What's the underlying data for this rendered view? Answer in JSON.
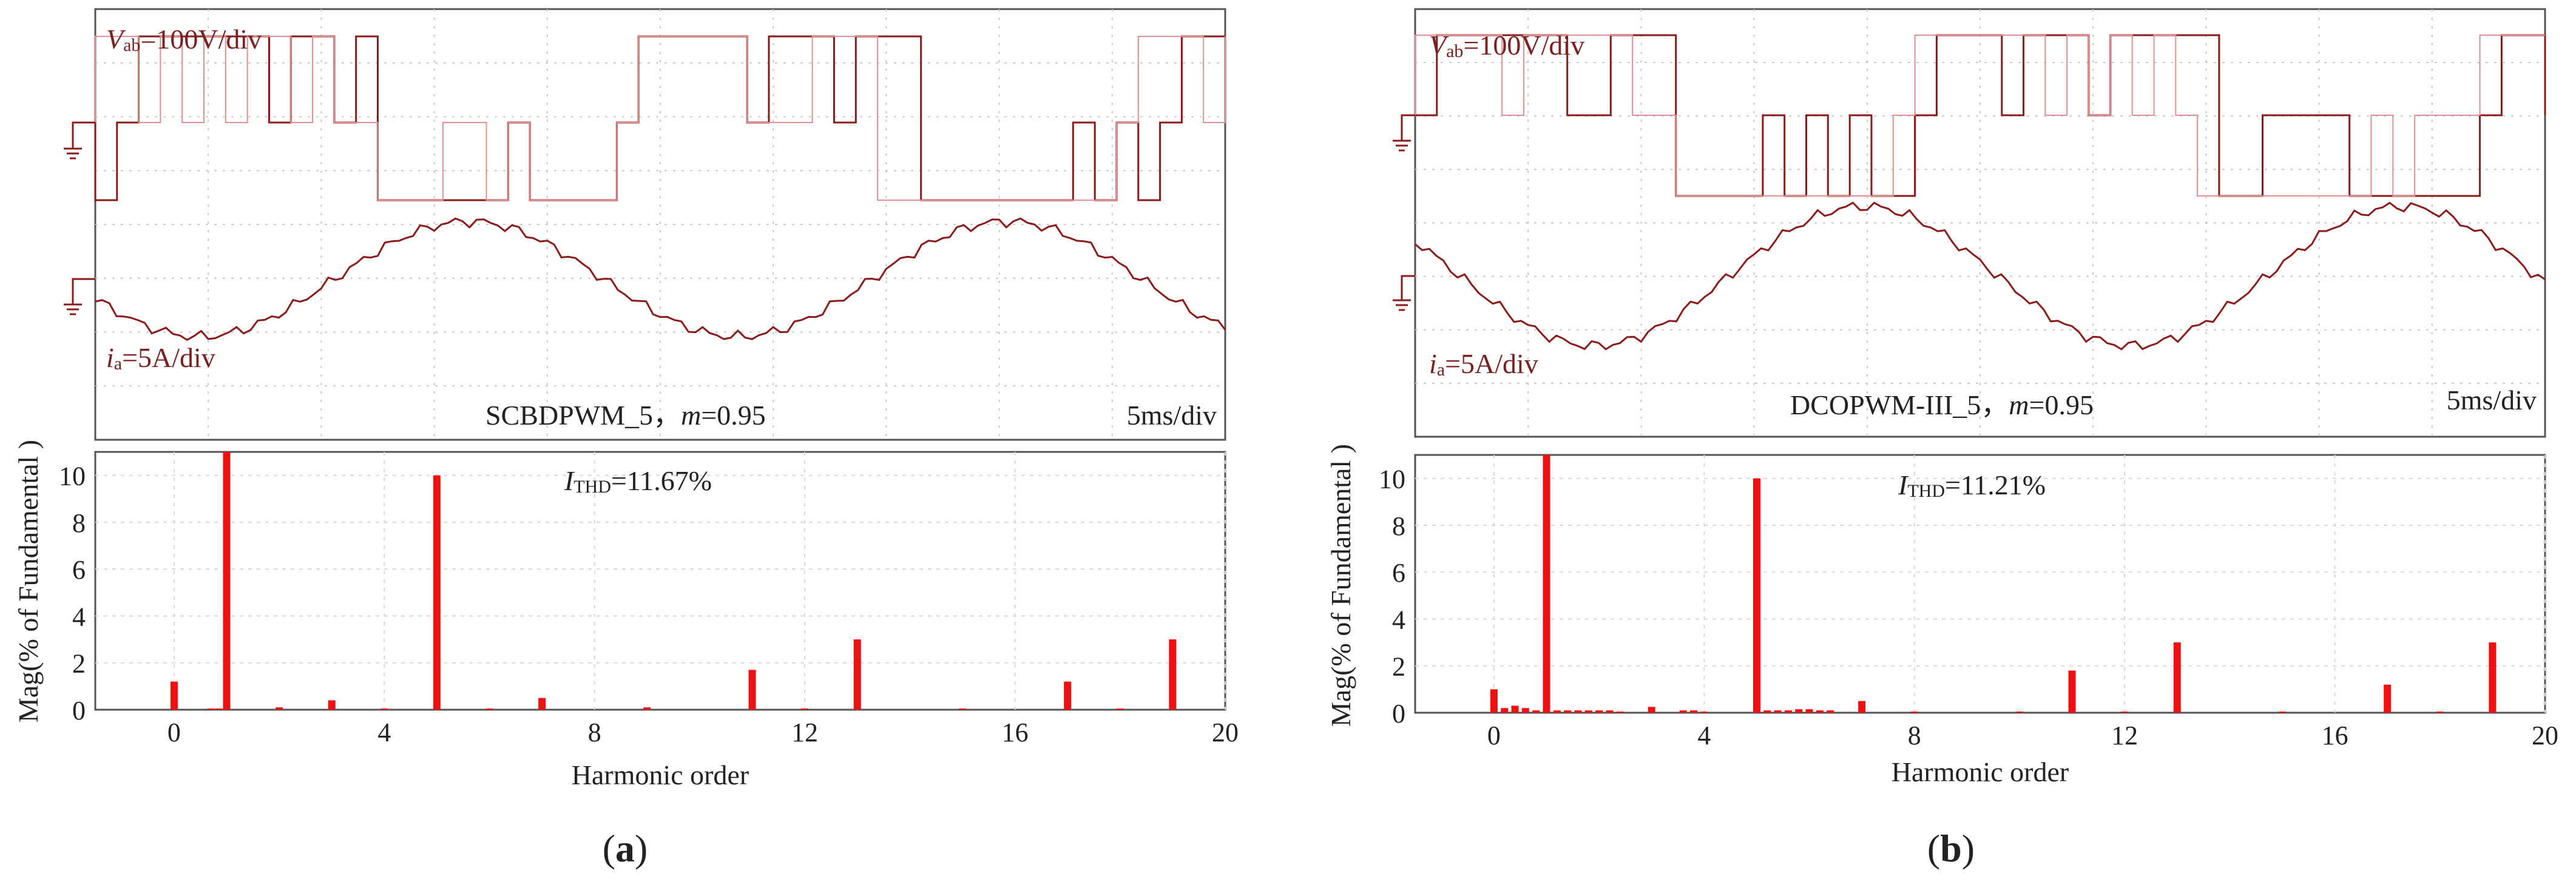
{
  "figures": [
    {
      "caption": "a",
      "oscilloscope": {
        "voltage_label_sym": "V",
        "voltage_label_sub": "ab",
        "voltage_label_rest": "=100V/div",
        "current_label_sym": "i",
        "current_label_sub": "a",
        "current_label_rest": "=5A/div",
        "method": "SCBDPWM_5",
        "mod_sym": "m",
        "mod_value": "=0.95",
        "timebase": "5ms/div",
        "current_phase_deg": 200
      },
      "thd_sym": "I",
      "thd_sub": "THD",
      "thd_value": "=11.67%"
    },
    {
      "caption": "b",
      "oscilloscope": {
        "voltage_label_sym": "V",
        "voltage_label_sub": "ab",
        "voltage_label_rest": "=100V/div",
        "current_label_sym": "i",
        "current_label_sub": "a",
        "current_label_rest": "=5A/div",
        "method": "DCOPWM-III_5",
        "mod_sym": "m",
        "mod_value": "=0.95",
        "timebase": "5ms/div",
        "current_phase_deg": 150
      },
      "thd_sym": "I",
      "thd_sub": "THD",
      "thd_value": "=11.21%"
    }
  ],
  "chart_data": [
    {
      "type": "bar",
      "title": "",
      "xlabel": "Harmonic order",
      "ylabel": "Mag(% of Fundamental )",
      "xlim": [
        -1.5,
        20
      ],
      "ylim": [
        0,
        11
      ],
      "xticks": [
        0,
        4,
        8,
        12,
        16,
        20
      ],
      "yticks": [
        0,
        2,
        4,
        6,
        8,
        10
      ],
      "x": [
        0,
        0.7,
        0.85,
        1,
        2,
        3,
        4,
        5,
        6,
        7,
        9,
        11,
        12,
        13,
        15,
        17,
        18,
        19
      ],
      "values": [
        1.2,
        0.05,
        0.05,
        11.5,
        0.1,
        0.4,
        0.05,
        10.0,
        0.05,
        0.5,
        0.1,
        1.7,
        0.05,
        3.0,
        0.05,
        1.2,
        0.05,
        3.0
      ]
    },
    {
      "type": "bar",
      "title": "",
      "xlabel": "Harmonic order",
      "ylabel": "Mag(% of Fundamental )",
      "xlim": [
        -1.5,
        20
      ],
      "ylim": [
        0,
        11
      ],
      "xticks": [
        0,
        4,
        8,
        12,
        16,
        20
      ],
      "yticks": [
        0,
        2,
        4,
        6,
        8,
        10
      ],
      "x": [
        0,
        0.2,
        0.4,
        0.6,
        0.8,
        1,
        1.2,
        1.4,
        1.6,
        1.8,
        2.0,
        2.2,
        2.4,
        3,
        3.6,
        3.8,
        4.0,
        5,
        5.2,
        5.4,
        5.6,
        5.8,
        6.0,
        6.2,
        6.4,
        7,
        8,
        10,
        11,
        12,
        13,
        15,
        17,
        18,
        19
      ],
      "values": [
        1.0,
        0.2,
        0.3,
        0.2,
        0.1,
        11.5,
        0.1,
        0.1,
        0.1,
        0.1,
        0.1,
        0.1,
        0.05,
        0.25,
        0.1,
        0.1,
        0.05,
        10.0,
        0.1,
        0.1,
        0.1,
        0.15,
        0.15,
        0.1,
        0.1,
        0.5,
        0.05,
        0.05,
        1.8,
        0.05,
        3.0,
        0.05,
        1.2,
        0.05,
        3.0
      ]
    }
  ]
}
